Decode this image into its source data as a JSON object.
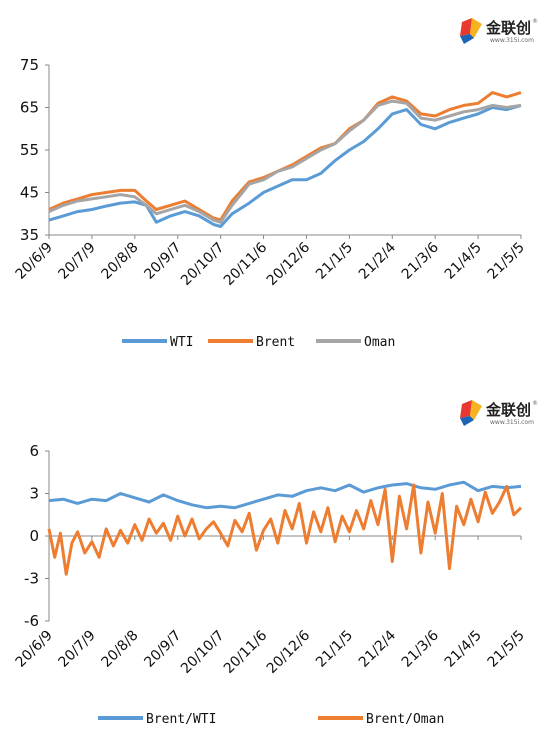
{
  "logo": {
    "text": "金联创",
    "url": "www.315i.com",
    "reg": "®"
  },
  "colors": {
    "s1": "#5B9BD5",
    "s2": "#ED7D31",
    "s3": "#A5A5A5"
  },
  "chart_data": [
    {
      "type": "line",
      "x_ticks": [
        "20/6/9",
        "20/7/9",
        "20/8/8",
        "20/9/7",
        "20/10/7",
        "20/11/6",
        "20/12/6",
        "21/1/5",
        "21/2/4",
        "21/3/6",
        "21/4/5",
        "21/5/5"
      ],
      "ylim": [
        35,
        75
      ],
      "y_ticks": [
        "35",
        "45",
        "55",
        "65",
        "75"
      ],
      "legend_position": "bottom",
      "grid": false,
      "x_index_range": [
        0,
        330
      ],
      "series": [
        {
          "name": "WTI",
          "color": "#5B9BD5",
          "points": [
            [
              0,
              38.5
            ],
            [
              10,
              39.5
            ],
            [
              20,
              40.5
            ],
            [
              30,
              41
            ],
            [
              40,
              41.8
            ],
            [
              50,
              42.5
            ],
            [
              60,
              42.8
            ],
            [
              68,
              42
            ],
            [
              75,
              38
            ],
            [
              85,
              39.5
            ],
            [
              95,
              40.5
            ],
            [
              105,
              39.5
            ],
            [
              115,
              37.5
            ],
            [
              120,
              37
            ],
            [
              128,
              40
            ],
            [
              140,
              42.5
            ],
            [
              150,
              45
            ],
            [
              160,
              46.5
            ],
            [
              170,
              48
            ],
            [
              180,
              48
            ],
            [
              190,
              49.5
            ],
            [
              200,
              52.5
            ],
            [
              210,
              55
            ],
            [
              220,
              57
            ],
            [
              230,
              60
            ],
            [
              240,
              63.5
            ],
            [
              250,
              64.5
            ],
            [
              260,
              61
            ],
            [
              270,
              60
            ],
            [
              280,
              61.5
            ],
            [
              290,
              62.5
            ],
            [
              300,
              63.5
            ],
            [
              310,
              65
            ],
            [
              320,
              64.5
            ],
            [
              330,
              65.5
            ]
          ]
        },
        {
          "name": "Brent",
          "color": "#ED7D31",
          "points": [
            [
              0,
              41
            ],
            [
              10,
              42.5
            ],
            [
              20,
              43.5
            ],
            [
              30,
              44.5
            ],
            [
              40,
              45
            ],
            [
              50,
              45.5
            ],
            [
              60,
              45.5
            ],
            [
              68,
              43
            ],
            [
              75,
              41
            ],
            [
              85,
              42
            ],
            [
              95,
              43
            ],
            [
              105,
              41
            ],
            [
              115,
              39
            ],
            [
              120,
              38.5
            ],
            [
              128,
              43
            ],
            [
              140,
              47.5
            ],
            [
              150,
              48.5
            ],
            [
              160,
              50
            ],
            [
              170,
              51.5
            ],
            [
              180,
              53.5
            ],
            [
              190,
              55.5
            ],
            [
              200,
              56.5
            ],
            [
              210,
              60
            ],
            [
              220,
              62
            ],
            [
              230,
              66
            ],
            [
              240,
              67.5
            ],
            [
              250,
              66.5
            ],
            [
              260,
              63.5
            ],
            [
              270,
              63
            ],
            [
              280,
              64.5
            ],
            [
              290,
              65.5
            ],
            [
              300,
              66
            ],
            [
              310,
              68.5
            ],
            [
              320,
              67.5
            ],
            [
              330,
              68.5
            ]
          ]
        },
        {
          "name": "Oman",
          "color": "#A5A5A5",
          "points": [
            [
              0,
              40.5
            ],
            [
              10,
              42
            ],
            [
              20,
              43
            ],
            [
              30,
              43.5
            ],
            [
              40,
              44
            ],
            [
              50,
              44.5
            ],
            [
              60,
              44
            ],
            [
              68,
              42
            ],
            [
              75,
              40
            ],
            [
              85,
              41
            ],
            [
              95,
              42
            ],
            [
              105,
              40.5
            ],
            [
              115,
              38.5
            ],
            [
              120,
              38
            ],
            [
              128,
              42
            ],
            [
              140,
              47
            ],
            [
              150,
              48
            ],
            [
              160,
              50
            ],
            [
              170,
              51
            ],
            [
              180,
              53
            ],
            [
              190,
              55
            ],
            [
              200,
              56.5
            ],
            [
              210,
              59.5
            ],
            [
              220,
              62
            ],
            [
              230,
              65.5
            ],
            [
              240,
              66.5
            ],
            [
              250,
              66
            ],
            [
              260,
              62.5
            ],
            [
              270,
              62
            ],
            [
              280,
              63
            ],
            [
              290,
              64
            ],
            [
              300,
              64.5
            ],
            [
              310,
              65.5
            ],
            [
              320,
              65
            ],
            [
              330,
              65.5
            ]
          ]
        }
      ]
    },
    {
      "type": "line",
      "x_ticks": [
        "20/6/9",
        "20/7/9",
        "20/8/8",
        "20/9/7",
        "20/10/7",
        "20/11/6",
        "20/12/6",
        "21/1/5",
        "21/2/4",
        "21/3/6",
        "21/4/5",
        "21/5/5"
      ],
      "ylim": [
        -6,
        6
      ],
      "y_ticks": [
        "6",
        "3",
        "0",
        "-3",
        "-6"
      ],
      "legend_position": "bottom",
      "grid": false,
      "x_index_range": [
        0,
        330
      ],
      "series": [
        {
          "name": "Brent/WTI",
          "color": "#5B9BD5",
          "points": [
            [
              0,
              2.5
            ],
            [
              10,
              2.6
            ],
            [
              20,
              2.3
            ],
            [
              30,
              2.6
            ],
            [
              40,
              2.5
            ],
            [
              50,
              3
            ],
            [
              60,
              2.7
            ],
            [
              70,
              2.4
            ],
            [
              80,
              2.9
            ],
            [
              90,
              2.5
            ],
            [
              100,
              2.2
            ],
            [
              110,
              2.0
            ],
            [
              120,
              2.1
            ],
            [
              130,
              2.0
            ],
            [
              140,
              2.3
            ],
            [
              150,
              2.6
            ],
            [
              160,
              2.9
            ],
            [
              170,
              2.8
            ],
            [
              180,
              3.2
            ],
            [
              190,
              3.4
            ],
            [
              200,
              3.2
            ],
            [
              210,
              3.6
            ],
            [
              220,
              3.1
            ],
            [
              230,
              3.4
            ],
            [
              240,
              3.6
            ],
            [
              250,
              3.7
            ],
            [
              260,
              3.4
            ],
            [
              270,
              3.3
            ],
            [
              280,
              3.6
            ],
            [
              290,
              3.8
            ],
            [
              300,
              3.2
            ],
            [
              310,
              3.5
            ],
            [
              320,
              3.4
            ],
            [
              330,
              3.5
            ]
          ]
        },
        {
          "name": "Brent/Oman",
          "color": "#ED7D31",
          "points": [
            [
              0,
              0.5
            ],
            [
              4,
              -1.5
            ],
            [
              8,
              0.2
            ],
            [
              12,
              -2.7
            ],
            [
              16,
              -0.5
            ],
            [
              20,
              0.3
            ],
            [
              25,
              -1.2
            ],
            [
              30,
              -0.4
            ],
            [
              35,
              -1.5
            ],
            [
              40,
              0.5
            ],
            [
              45,
              -0.7
            ],
            [
              50,
              0.4
            ],
            [
              55,
              -0.5
            ],
            [
              60,
              0.8
            ],
            [
              65,
              -0.3
            ],
            [
              70,
              1.2
            ],
            [
              75,
              0.2
            ],
            [
              80,
              0.9
            ],
            [
              85,
              -0.3
            ],
            [
              90,
              1.4
            ],
            [
              95,
              0.0
            ],
            [
              100,
              1.2
            ],
            [
              105,
              -0.2
            ],
            [
              110,
              0.5
            ],
            [
              115,
              1.0
            ],
            [
              120,
              0.2
            ],
            [
              125,
              -0.7
            ],
            [
              130,
              1.1
            ],
            [
              135,
              0.3
            ],
            [
              140,
              1.6
            ],
            [
              145,
              -1.0
            ],
            [
              150,
              0.4
            ],
            [
              155,
              1.2
            ],
            [
              160,
              -0.5
            ],
            [
              165,
              1.8
            ],
            [
              170,
              0.5
            ],
            [
              175,
              2.3
            ],
            [
              180,
              -0.5
            ],
            [
              185,
              1.7
            ],
            [
              190,
              0.3
            ],
            [
              195,
              2.0
            ],
            [
              200,
              -0.4
            ],
            [
              205,
              1.4
            ],
            [
              210,
              0.3
            ],
            [
              215,
              1.8
            ],
            [
              220,
              0.5
            ],
            [
              225,
              2.5
            ],
            [
              230,
              0.8
            ],
            [
              235,
              3.3
            ],
            [
              240,
              -1.8
            ],
            [
              245,
              2.8
            ],
            [
              250,
              0.5
            ],
            [
              255,
              3.6
            ],
            [
              260,
              -1.2
            ],
            [
              265,
              2.4
            ],
            [
              270,
              0.2
            ],
            [
              275,
              3.0
            ],
            [
              280,
              -2.3
            ],
            [
              285,
              2.1
            ],
            [
              290,
              0.8
            ],
            [
              295,
              2.6
            ],
            [
              300,
              1.0
            ],
            [
              305,
              3.1
            ],
            [
              310,
              1.6
            ],
            [
              315,
              2.4
            ],
            [
              320,
              3.5
            ],
            [
              325,
              1.5
            ],
            [
              330,
              2.0
            ]
          ]
        }
      ]
    }
  ]
}
